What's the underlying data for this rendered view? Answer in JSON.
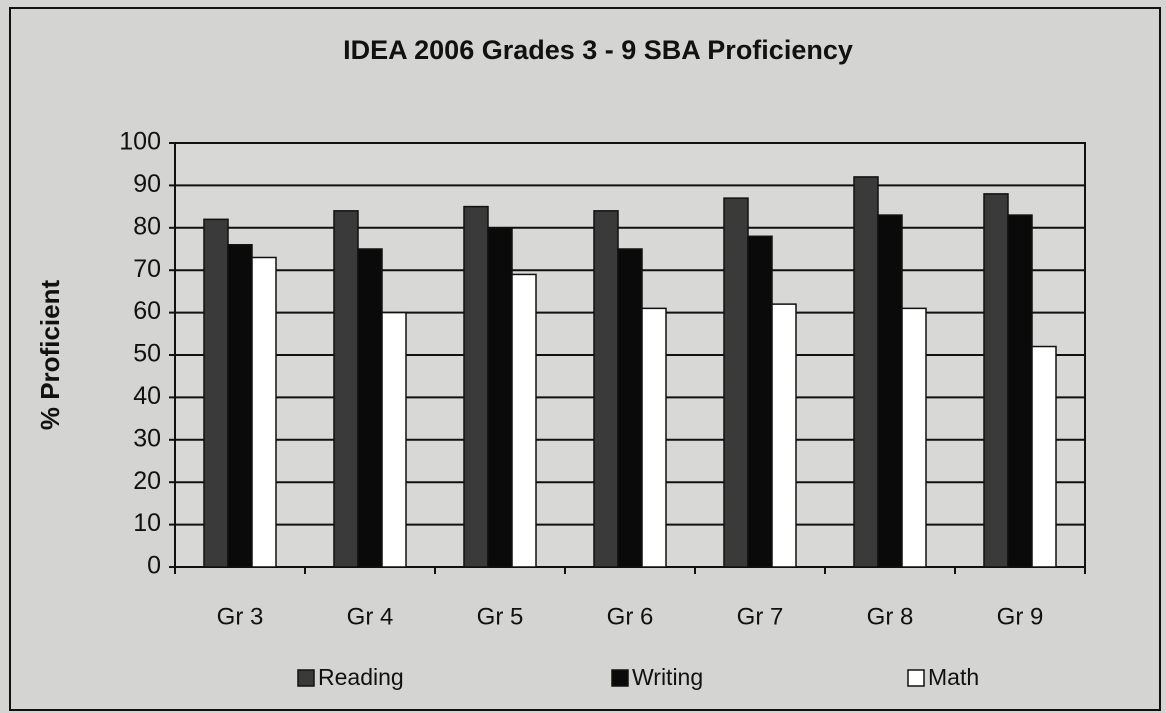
{
  "chart_data": {
    "type": "bar",
    "title": "IDEA 2006 Grades 3 - 9 SBA Proficiency",
    "y_label": "% Proficient",
    "categories": [
      "Gr 3",
      "Gr 4",
      "Gr 5",
      "Gr 6",
      "Gr 7",
      "Gr 8",
      "Gr 9"
    ],
    "series": [
      {
        "name": "Reading",
        "color": "#3a3a3a",
        "values": [
          82,
          84,
          85,
          84,
          87,
          92,
          88
        ]
      },
      {
        "name": "Writing",
        "color": "#0a0a0a",
        "values": [
          76,
          75,
          80,
          75,
          78,
          83,
          83
        ]
      },
      {
        "name": "Math",
        "color": "#ffffff",
        "values": [
          73,
          60,
          69,
          61,
          62,
          61,
          52
        ]
      }
    ],
    "ylim": [
      0,
      100
    ],
    "yticks": [
      0,
      10,
      20,
      30,
      40,
      50,
      60,
      70,
      80,
      90,
      100
    ],
    "grid": true,
    "legend": "bottom"
  }
}
